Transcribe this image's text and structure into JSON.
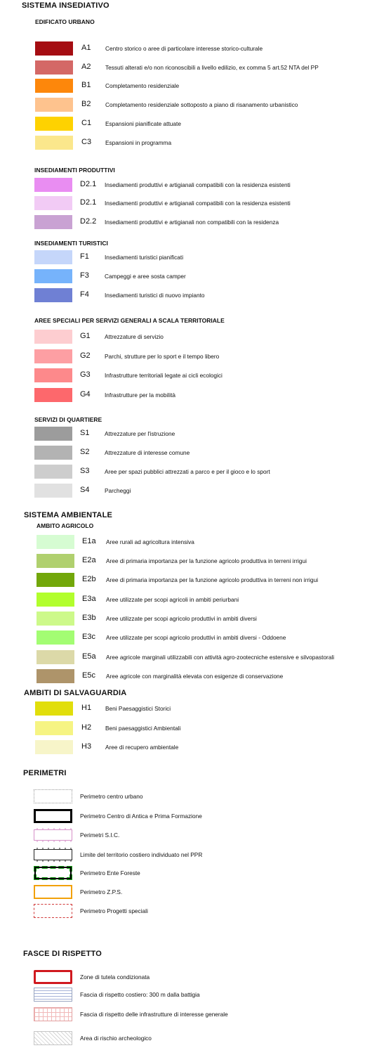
{
  "sistema_insediativo": {
    "title": "SISTEMA INSEDIATIVO",
    "edificato": {
      "title": "EDIFICATO URBANO",
      "items": [
        {
          "code": "A1",
          "color": "#a50d12",
          "label": "Centro storico o aree di particolare interesse storico-culturale"
        },
        {
          "code": "A2",
          "color": "#d46866",
          "label": "Tessuti alterati e/o non riconoscibili a livello edilizio, ex comma 5 art.52 NTA del PP"
        },
        {
          "code": "B1",
          "color": "#fd870b",
          "label": "Completamento residenziale"
        },
        {
          "code": "B2",
          "color": "#fec38e",
          "label": "Completamento residenziale sottoposto a piano di risanamento urbanistico"
        },
        {
          "code": "C1",
          "color": "#fed201",
          "label": "Espansioni pianificate attuate"
        },
        {
          "code": "C3",
          "color": "#fbe78c",
          "label": "Espansioni in programma"
        }
      ]
    },
    "produttivi": {
      "title": "INSEDIAMENTI PRODUTTIVI",
      "items": [
        {
          "code": "D2.1",
          "color": "#e98df2",
          "label": "Insediamenti produttivi e artigianali compatibili con la residenza esistenti"
        },
        {
          "code": "D2.1",
          "color": "#f2cbf5",
          "label": "Insediamenti produttivi e artigianali compatibili con la residenza esistenti"
        },
        {
          "code": "D2.2",
          "color": "#c9a2d3",
          "label": "Insediamenti produttivi e artigianali non compatibili con la residenza"
        }
      ]
    },
    "turistici": {
      "title": "INSEDIAMENTI TURISTICI",
      "items": [
        {
          "code": "F1",
          "color": "#c5d6fa",
          "label": "Insediamenti turistici pianificati"
        },
        {
          "code": "F3",
          "color": "#76b3fb",
          "label": "Campeggi e aree sosta camper"
        },
        {
          "code": "F4",
          "color": "#6f80d4",
          "label": "Insediamenti turistici di nuovo impianto"
        }
      ]
    },
    "servizi_territoriali": {
      "title": "AREE SPECIALI PER SERVIZI GENERALI A SCALA TERRITORIALE",
      "items": [
        {
          "code": "G1",
          "color": "#fdcdd0",
          "label": "Attrezzature di servizio"
        },
        {
          "code": "G2",
          "color": "#fd9fa3",
          "label": "Parchi, strutture per lo sport e il tempo libero"
        },
        {
          "code": "G3",
          "color": "#fd898b",
          "label": "Infrastrutture territoriali legate ai cicli ecologici"
        },
        {
          "code": "G4",
          "color": "#fd686c",
          "label": "Infrastrutture per la mobilità"
        }
      ]
    },
    "servizi_quartiere": {
      "title": "SERVIZI DI QUARTIERE",
      "items": [
        {
          "code": "S1",
          "color": "#9c9c9c",
          "label": "Attrezzature per l'istruzione"
        },
        {
          "code": "S2",
          "color": "#b3b3b3",
          "label": "Attrezzature di interesse comune"
        },
        {
          "code": "S3",
          "color": "#cdcdcd",
          "label": "Aree per spazi pubblici attrezzati a parco e per il gioco e lo sport"
        },
        {
          "code": "S4",
          "color": "#e1e1e1",
          "label": "Parcheggi"
        }
      ]
    }
  },
  "sistema_ambientale": {
    "title": "SISTEMA AMBIENTALE",
    "agricolo": {
      "title": "AMBITO AGRICOLO",
      "items": [
        {
          "code": "E1a",
          "color": "#d6fcd2",
          "label": "Aree rurali ad agricoltura intensiva"
        },
        {
          "code": "E2a",
          "color": "#b0d06e",
          "label": "Aree di primaria importanza per la funzione agricolo produttiva in terreni irrigui"
        },
        {
          "code": "E2b",
          "color": "#72a70a",
          "label": "Aree di primaria importanza per la funzione agricolo produttiva in terreni non irrigui"
        },
        {
          "code": "E3a",
          "color": "#b2fe2d",
          "label": "Aree utilizzate per scopi agricoli in ambiti periurbani"
        },
        {
          "code": "E3b",
          "color": "#cdf98a",
          "label": "Aree utilizzate per scopi agricolo produttivi in ambiti diversi"
        },
        {
          "code": "E3c",
          "color": "#a3fd73",
          "label": "Aree utilizzate per scopi agricolo produttivi in ambiti diversi - Oddoene"
        },
        {
          "code": "E5a",
          "color": "#dcd9a8",
          "label": "Aree agricole marginali utilizzabili con attività agro-zootecniche estensive e silvopastorali"
        },
        {
          "code": "E5c",
          "color": "#ae946a",
          "label": "Aree agricole con marginalità elevata con esigenze di  conservazione"
        }
      ]
    },
    "salvaguardia": {
      "title": "AMBITI DI SALVAGUARDIA",
      "items": [
        {
          "code": "H1",
          "color": "#e1de0b",
          "label": "Beni Paesaggistici Storici"
        },
        {
          "code": "H2",
          "color": "#f6f483",
          "label": "Beni paesaggistici Ambientali"
        },
        {
          "code": "H3",
          "color": "#f7f5c9",
          "label": "Aree di recupero ambientale"
        }
      ]
    }
  },
  "perimetri": {
    "title": "PERIMETRI",
    "items": [
      {
        "style": "dotted-grey",
        "label": "Perimetro centro urbano"
      },
      {
        "style": "thick-black",
        "label": "Perimetro Centro di Antica e Prima Formazione"
      },
      {
        "style": "pink-ticks",
        "label": "Perimetri S.I.C."
      },
      {
        "style": "black-ticks",
        "label": "Limite del territorio costiero individuato nel PPR"
      },
      {
        "style": "green-dash-black",
        "label": "Perimetro Ente Foreste"
      },
      {
        "style": "orange",
        "label": "Perimetro  Z.P.S."
      },
      {
        "style": "red-dashed",
        "label": "Perimetro  Progetti speciali"
      }
    ]
  },
  "fasce": {
    "title": "FASCE DI RISPETTO",
    "items": [
      {
        "style": "red-thick",
        "label": "Zone di tutela condizionata"
      },
      {
        "style": "blue-lines",
        "label": "Fascia di rispetto costiero: 300 m dalla battigia"
      },
      {
        "style": "pink-grid",
        "label": "Fascia di rispetto delle infrastrutture di interesse generale"
      },
      {
        "style": "crosshatch",
        "label": "Area di rischio archeologico"
      }
    ]
  }
}
